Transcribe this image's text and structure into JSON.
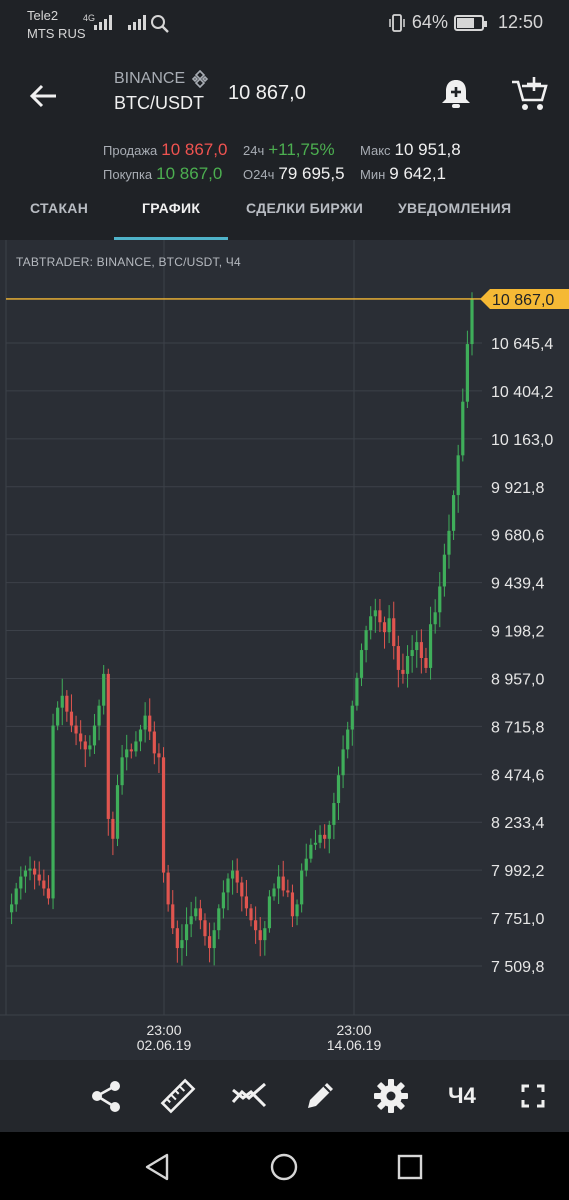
{
  "status_bar": {
    "carrier1": "Tele2",
    "carrier2": "MTS RUS",
    "net_type": "4G",
    "battery": "64%",
    "battery_level": 0.64,
    "time": "12:50"
  },
  "header": {
    "exchange": "BINANCE",
    "pair": "BTC/USDT",
    "last_price": "10 867,0"
  },
  "stats": {
    "sell_label": "Продажа",
    "sell_value": "10 867,0",
    "buy_label": "Покупка",
    "buy_value": "10 867,0",
    "change_label": "24ч",
    "change_value": "+11,75%",
    "volume_label": "О24ч",
    "volume_value": "79 695,5",
    "max_label": "Макс",
    "max_value": "10 951,8",
    "min_label": "Мин",
    "min_value": "9 642,1"
  },
  "tabs": [
    "СТАКАН",
    "ГРАФИК",
    "СДЕЛКИ БИРЖИ",
    "УВЕДОМЛЕНИЯ"
  ],
  "active_tab": 1,
  "chart": {
    "watermark": "TABTRADER: BINANCE, BTC/USDT, Ч4",
    "current_price": "10 867,0",
    "current_price_value": 10867.0,
    "y_tick_labels": [
      "10 645,4",
      "10 404,2",
      "10 163,0",
      "9 921,8",
      "9 680,6",
      "9 439,4",
      "9 198,2",
      "8 957,0",
      "8 715,8",
      "8 474,6",
      "8 233,4",
      "7 992,2",
      "7 751,0",
      "7 509,8"
    ],
    "x_time_labels": [
      "23:00",
      "23:00"
    ],
    "x_date_labels": [
      "02.06.19",
      "14.06.19"
    ],
    "colors": {
      "up": "#3fae5a",
      "down": "#e0554f",
      "price_line": "#f5b935",
      "grid": "#3c4149"
    }
  },
  "chart_data": {
    "type": "candlestick",
    "title": "TABTRADER: BINANCE, BTC/USDT, Ч4",
    "ylim": [
      7400,
      11000
    ],
    "ticks": [
      10645.4,
      10404.2,
      10163.0,
      9921.8,
      9680.6,
      9439.4,
      9198.2,
      8957.0,
      8715.8,
      8474.6,
      8233.4,
      7992.2,
      7751.0,
      7509.8
    ],
    "last": 10867.0,
    "close_path": [
      7780,
      7820,
      7900,
      7960,
      7990,
      8000,
      7970,
      7940,
      7900,
      7850,
      8720,
      8810,
      8870,
      8790,
      8720,
      8680,
      8640,
      8600,
      8620,
      8720,
      8820,
      8980,
      8250,
      8150,
      8420,
      8560,
      8600,
      8590,
      8640,
      8700,
      8770,
      8690,
      8580,
      8560,
      7980,
      7820,
      7700,
      7600,
      7640,
      7720,
      7760,
      7800,
      7740,
      7660,
      7600,
      7690,
      7800,
      7880,
      7950,
      7990,
      7930,
      7860,
      7800,
      7740,
      7690,
      7640,
      7700,
      7860,
      7900,
      7960,
      7890,
      7880,
      7760,
      7820,
      7990,
      8050,
      8120,
      8130,
      8170,
      8150,
      8220,
      8330,
      8470,
      8600,
      8700,
      8820,
      8960,
      9100,
      9200,
      9270,
      9300,
      9240,
      9190,
      9260,
      9120,
      9000,
      8980,
      9070,
      9100,
      9140,
      9060,
      9010,
      9230,
      9290,
      9420,
      9580,
      9700,
      9880,
      10080,
      10350,
      10640,
      10867
    ]
  },
  "toolbar": {
    "icons": [
      "share-icon",
      "ruler-icon",
      "indicator-icon",
      "pencil-icon",
      "settings-gear-icon",
      "timeframe",
      "fullscreen-icon"
    ],
    "timeframe": "Ч4"
  },
  "navbar": {
    "icons": [
      "back-triangle-icon",
      "home-circle-icon",
      "recents-square-icon"
    ]
  }
}
